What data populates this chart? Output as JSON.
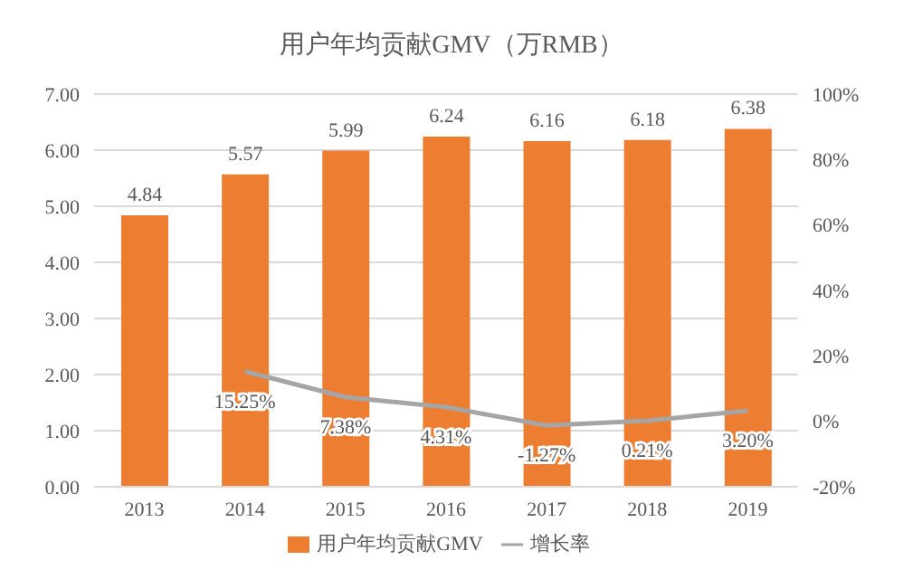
{
  "chart_data": {
    "type": "bar",
    "title": "用户年均贡献GMV（万RMB）",
    "categories": [
      "2013",
      "2014",
      "2015",
      "2016",
      "2017",
      "2018",
      "2019"
    ],
    "series": [
      {
        "name": "用户年均贡献GMV",
        "color": "#ed7d31",
        "values": [
          4.84,
          5.57,
          5.99,
          6.24,
          6.16,
          6.18,
          6.38
        ],
        "value_labels": [
          "4.84",
          "5.57",
          "5.99",
          "6.24",
          "6.16",
          "6.18",
          "6.38"
        ]
      },
      {
        "name": "增长率",
        "type": "line",
        "axis": "y2",
        "color": "#a5a5a5",
        "values": [
          null,
          15.25,
          7.38,
          4.31,
          -1.27,
          0.21,
          3.2
        ],
        "value_labels": [
          null,
          "15.25%",
          "7.38%",
          "4.31%",
          "-1.27%",
          "0.21%",
          "3.20%"
        ]
      }
    ],
    "ylim": [
      0,
      7
    ],
    "yticks": [
      {
        "value": 0,
        "label": "0.00"
      },
      {
        "value": 1,
        "label": "1.00"
      },
      {
        "value": 2,
        "label": "2.00"
      },
      {
        "value": 3,
        "label": "3.00"
      },
      {
        "value": 4,
        "label": "4.00"
      },
      {
        "value": 5,
        "label": "5.00"
      },
      {
        "value": 6,
        "label": "6.00"
      },
      {
        "value": 7,
        "label": "7.00"
      }
    ],
    "y2lim": [
      -20,
      100
    ],
    "y2ticks": [
      {
        "value": -20,
        "label": "-20%"
      },
      {
        "value": 0,
        "label": "0%"
      },
      {
        "value": 20,
        "label": "20%"
      },
      {
        "value": 40,
        "label": "40%"
      },
      {
        "value": 60,
        "label": "60%"
      },
      {
        "value": 80,
        "label": "80%"
      },
      {
        "value": 100,
        "label": "100%"
      }
    ],
    "grid": "y",
    "legend": "bottom",
    "marker": "none",
    "line_style": "solid"
  }
}
